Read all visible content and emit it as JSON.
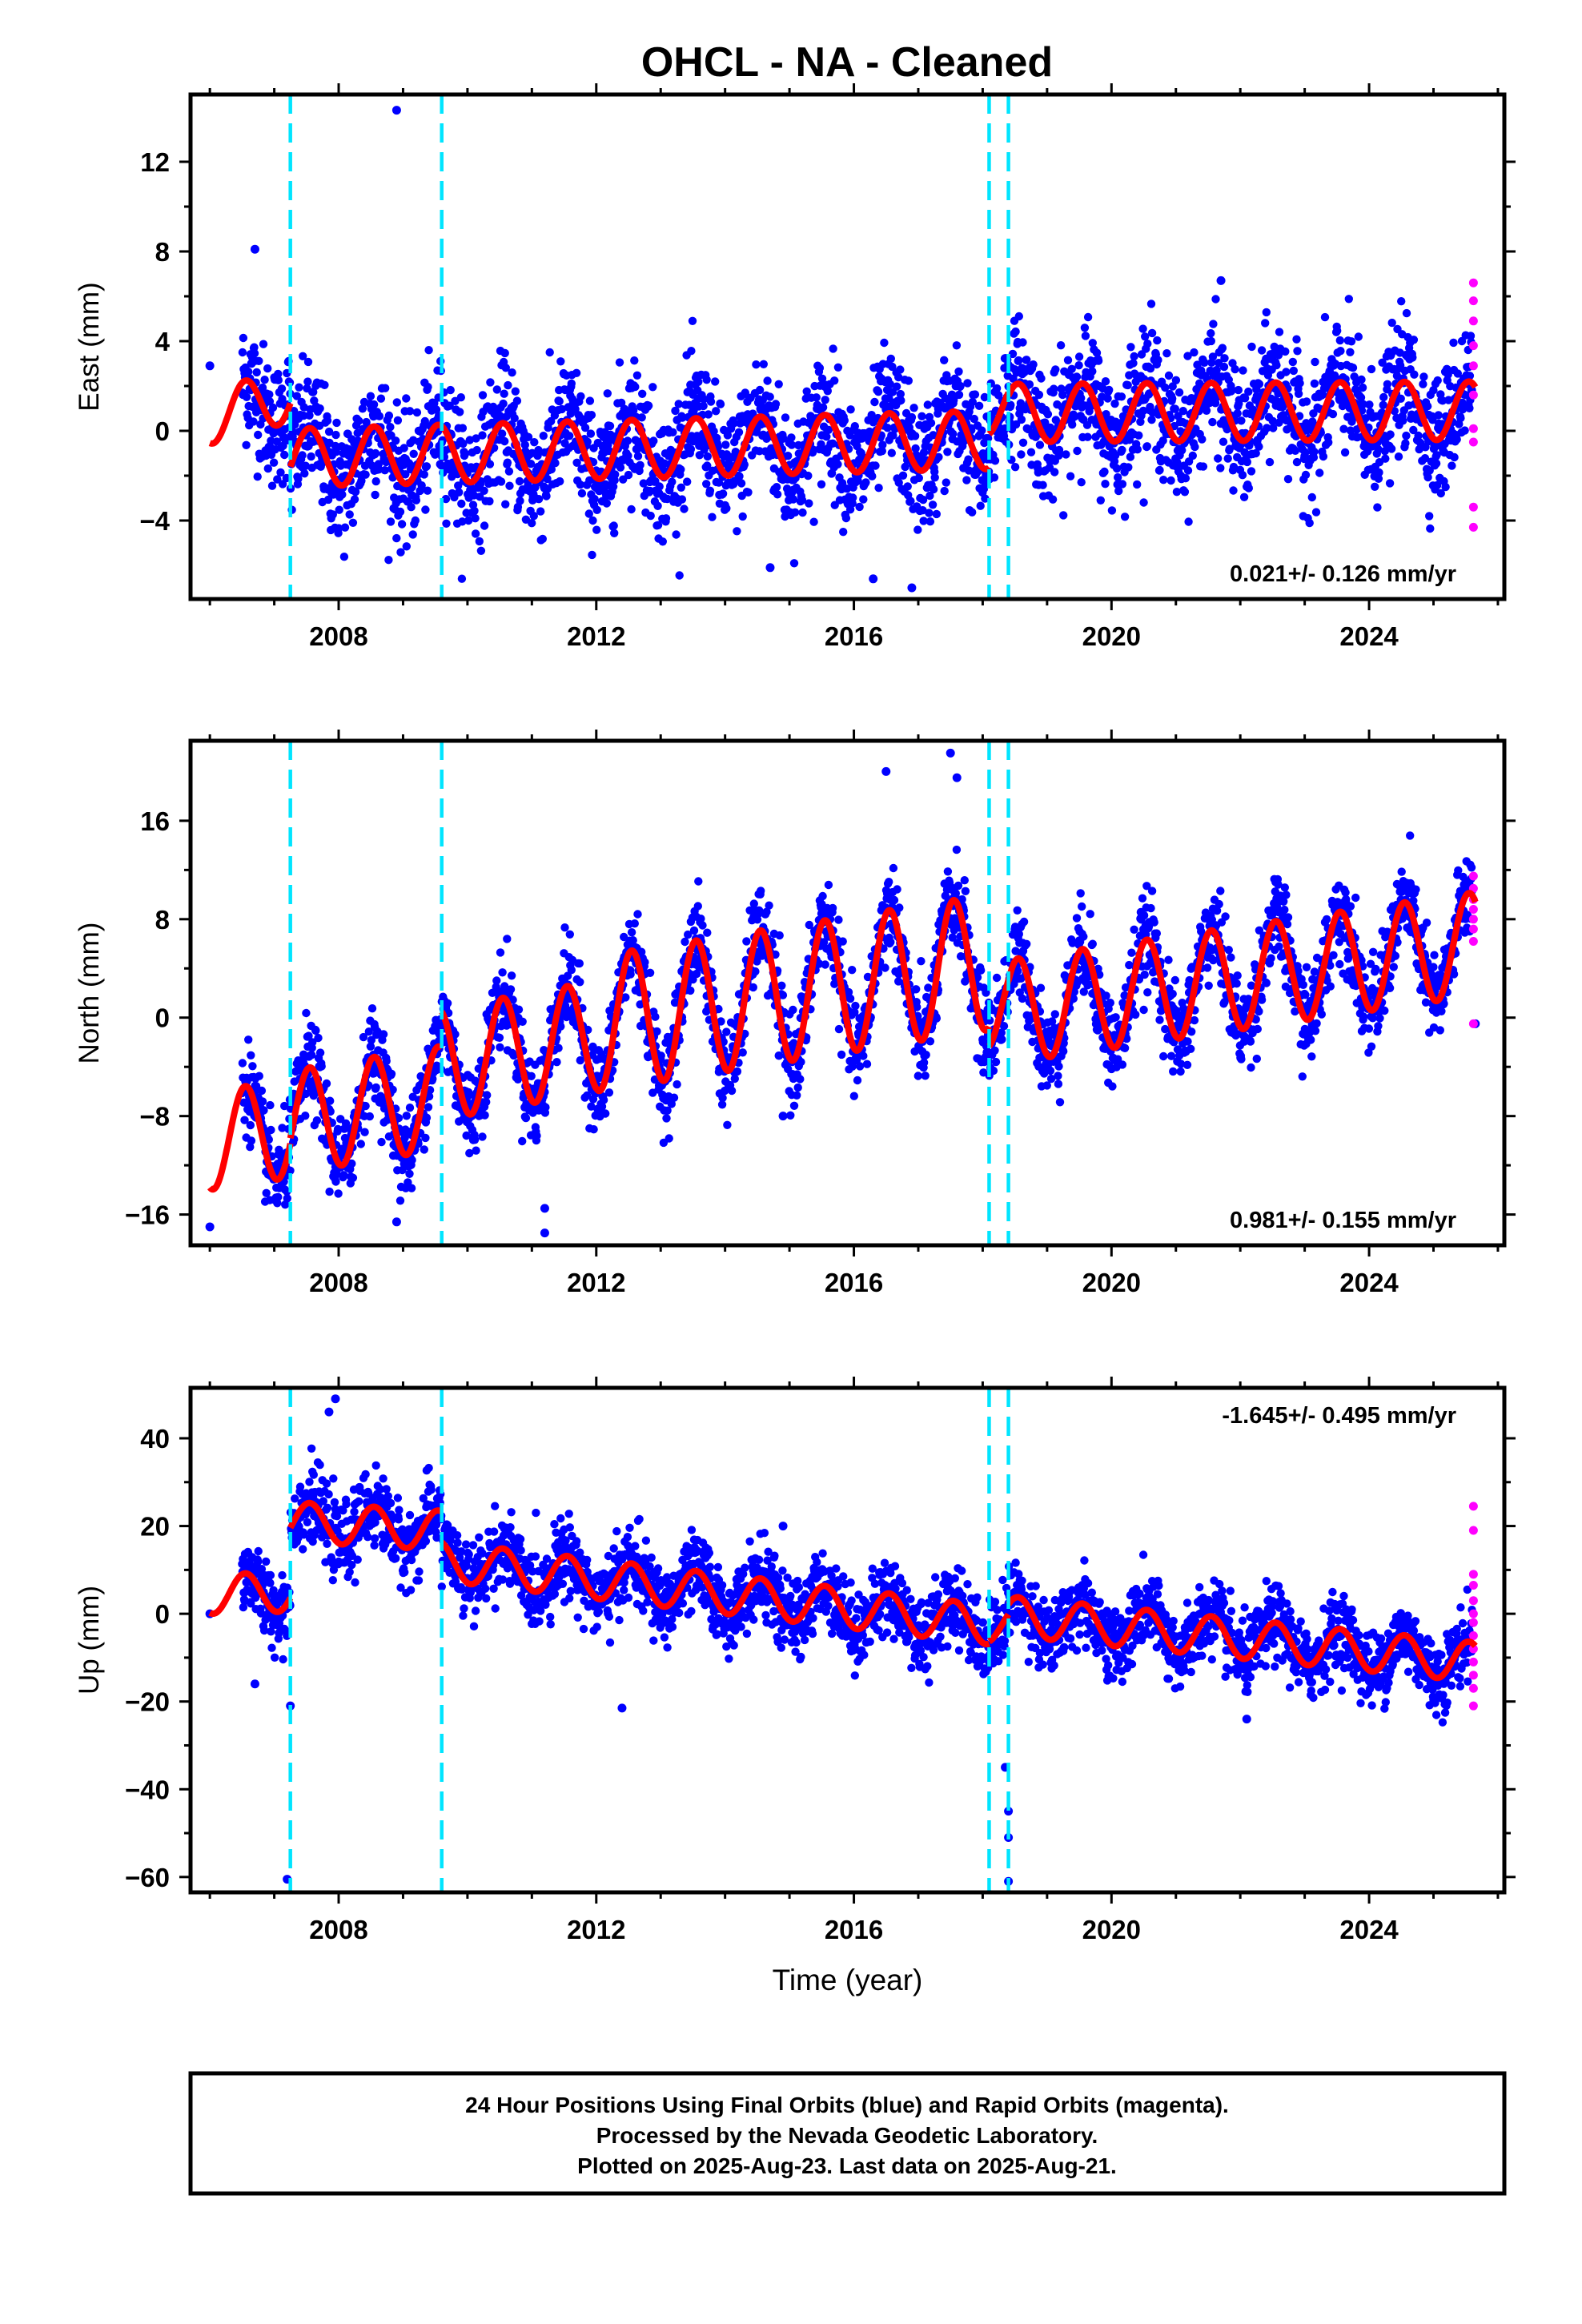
{
  "title": "OHCL  - NA - Cleaned",
  "colors": {
    "final": "#0000ff",
    "rapid": "#ff00ff",
    "model": "#ff0000",
    "break": "#00e5ff",
    "frame": "#000000"
  },
  "chart_data": [
    {
      "type": "scatter",
      "component": "east",
      "ylabel": "East (mm)",
      "xlabel": "",
      "xlim": [
        2005.7,
        2026.1
      ],
      "ylim": [
        -7.5,
        15.0
      ],
      "yticks": [
        -4,
        0,
        4,
        8,
        12
      ],
      "ytick_labels": [
        "−4",
        "0",
        "4",
        "8",
        "12"
      ],
      "xticks": [
        2008,
        2012,
        2016,
        2020,
        2024
      ],
      "xtick_labels": [
        "2008",
        "2012",
        "2016",
        "2020",
        "2024"
      ],
      "breaks": [
        2007.25,
        2009.6,
        2018.1,
        2018.4
      ],
      "rate_text": "0.021+/- 0.126 mm/yr",
      "rate_position": "bottom-right",
      "model": {
        "segments": [
          {
            "x0": 2006.0,
            "x1": 2007.25,
            "level0": 0.6,
            "level1": 1.6,
            "amp": 1.2
          },
          {
            "x0": 2007.25,
            "x1": 2018.1,
            "level0": -1.2,
            "level1": -0.4,
            "amp": 1.3
          },
          {
            "x0": 2018.1,
            "x1": 2018.4,
            "level0": 1.0,
            "level1": 1.0,
            "amp": 1.2
          },
          {
            "x0": 2018.4,
            "x1": 2025.65,
            "level0": 0.8,
            "level1": 0.9,
            "amp": 1.3
          }
        ]
      },
      "scatter_noise": 1.4,
      "outliers": [
        [
          2006.0,
          2.9
        ],
        [
          2006.7,
          8.1
        ],
        [
          2008.9,
          14.3
        ],
        [
          2014.7,
          -6.1
        ],
        [
          2016.3,
          -6.6
        ],
        [
          2016.9,
          -7.0
        ],
        [
          2021.7,
          6.7
        ]
      ],
      "rapid_points": [
        [
          2025.62,
          6.6
        ],
        [
          2025.62,
          5.8
        ],
        [
          2025.62,
          4.9
        ],
        [
          2025.62,
          3.8
        ],
        [
          2025.62,
          2.9
        ],
        [
          2025.62,
          1.6
        ],
        [
          2025.62,
          0.1
        ],
        [
          2025.62,
          -0.5
        ],
        [
          2025.62,
          -3.4
        ],
        [
          2025.62,
          -4.3
        ]
      ]
    },
    {
      "type": "scatter",
      "component": "north",
      "ylabel": "North (mm)",
      "xlabel": "",
      "xlim": [
        2005.7,
        2026.1
      ],
      "ylim": [
        -18.5,
        22.5
      ],
      "yticks": [
        -16,
        -8,
        0,
        8,
        16
      ],
      "ytick_labels": [
        "−16",
        "−8",
        "0",
        "8",
        "16"
      ],
      "xticks": [
        2008,
        2012,
        2016,
        2020,
        2024
      ],
      "xtick_labels": [
        "2008",
        "2012",
        "2016",
        "2020",
        "2024"
      ],
      "breaks": [
        2007.25,
        2009.6,
        2018.1,
        2018.4
      ],
      "rate_text": "0.981+/- 0.155 mm/yr",
      "rate_position": "bottom-right",
      "model": {
        "segments": [
          {
            "x0": 2006.0,
            "x1": 2007.25,
            "level0": -10.0,
            "level1": -9.0,
            "amp": 4.0
          },
          {
            "x0": 2007.25,
            "x1": 2009.6,
            "level0": -8.5,
            "level1": -6.5,
            "amp": 4.2
          },
          {
            "x0": 2009.6,
            "x1": 2012.0,
            "level0": -3.8,
            "level1": -1.5,
            "amp": 4.5
          },
          {
            "x0": 2012.0,
            "x1": 2018.1,
            "level0": -0.5,
            "level1": 4.5,
            "amp": 5.5
          },
          {
            "x0": 2018.1,
            "x1": 2018.4,
            "level0": 1.0,
            "level1": 1.0,
            "amp": 3.5
          },
          {
            "x0": 2018.4,
            "x1": 2025.65,
            "level0": 0.5,
            "level1": 6.0,
            "amp": 4.2
          }
        ]
      },
      "scatter_noise": 1.8,
      "outliers": [
        [
          2006.0,
          -17.0
        ],
        [
          2008.9,
          -16.6
        ],
        [
          2011.2,
          -17.5
        ],
        [
          2011.2,
          -15.5
        ],
        [
          2014.9,
          -8.0
        ],
        [
          2017.5,
          21.5
        ],
        [
          2017.6,
          19.5
        ],
        [
          2016.5,
          20.0
        ],
        [
          2025.65,
          -0.5
        ]
      ],
      "rapid_points": [
        [
          2025.62,
          11.5
        ],
        [
          2025.62,
          10.5
        ],
        [
          2025.62,
          9.6
        ],
        [
          2025.62,
          8.8
        ],
        [
          2025.62,
          8.0
        ],
        [
          2025.62,
          7.2
        ],
        [
          2025.62,
          6.2
        ],
        [
          2025.62,
          -0.5
        ]
      ]
    },
    {
      "type": "scatter",
      "component": "up",
      "ylabel": "Up (mm)",
      "xlabel": "Time (year)",
      "xlim": [
        2005.7,
        2026.1
      ],
      "ylim": [
        -63.5,
        51.5
      ],
      "yticks": [
        -60,
        -40,
        -20,
        0,
        20,
        40
      ],
      "ytick_labels": [
        "−60",
        "−40",
        "−20",
        "0",
        "20",
        "40"
      ],
      "xticks": [
        2008,
        2012,
        2016,
        2020,
        2024
      ],
      "xtick_labels": [
        "2008",
        "2012",
        "2016",
        "2020",
        "2024"
      ],
      "breaks": [
        2007.25,
        2009.6,
        2018.1,
        2018.4
      ],
      "rate_text": "-1.645+/- 0.495 mm/yr",
      "rate_position": "top-right",
      "model": {
        "segments": [
          {
            "x0": 2006.0,
            "x1": 2007.25,
            "level0": 4.5,
            "level1": 5.0,
            "amp": 4.5
          },
          {
            "x0": 2007.25,
            "x1": 2009.6,
            "level0": 21.0,
            "level1": 19.0,
            "amp": 4.5
          },
          {
            "x0": 2009.6,
            "x1": 2018.1,
            "level0": 12.0,
            "level1": -2.5,
            "amp": 4.5
          },
          {
            "x0": 2018.1,
            "x1": 2018.4,
            "level0": -2.5,
            "level1": -2.5,
            "amp": 4.0
          },
          {
            "x0": 2018.4,
            "x1": 2025.65,
            "level0": -0.5,
            "level1": -11.0,
            "amp": 4.5
          }
        ]
      },
      "scatter_noise": 4.2,
      "outliers": [
        [
          2006.0,
          0.0
        ],
        [
          2006.7,
          -16.0
        ],
        [
          2007.25,
          -21.0
        ],
        [
          2007.2,
          -60.5
        ],
        [
          2007.95,
          49.0
        ],
        [
          2007.85,
          46.0
        ],
        [
          2012.4,
          -21.5
        ],
        [
          2014.9,
          20.0
        ],
        [
          2018.4,
          -45.0
        ],
        [
          2018.4,
          -51.0
        ],
        [
          2018.4,
          -61.0
        ],
        [
          2018.35,
          -35.0
        ],
        [
          2022.1,
          -24.0
        ]
      ],
      "rapid_points": [
        [
          2025.62,
          24.5
        ],
        [
          2025.62,
          19.0
        ],
        [
          2025.62,
          9.0
        ],
        [
          2025.62,
          6.5
        ],
        [
          2025.62,
          3.0
        ],
        [
          2025.62,
          0.0
        ],
        [
          2025.62,
          -2.0
        ],
        [
          2025.62,
          -5.0
        ],
        [
          2025.62,
          -8.0
        ],
        [
          2025.62,
          -11.0
        ],
        [
          2025.62,
          -14.0
        ],
        [
          2025.62,
          -17.0
        ],
        [
          2025.62,
          -21.0
        ]
      ]
    }
  ],
  "footer": {
    "line1": "24 Hour Positions Using Final Orbits (blue) and Rapid Orbits (magenta).",
    "line2": "Processed by the Nevada Geodetic Laboratory.",
    "line3": "Plotted on 2025-Aug-23. Last data on 2025-Aug-21."
  }
}
